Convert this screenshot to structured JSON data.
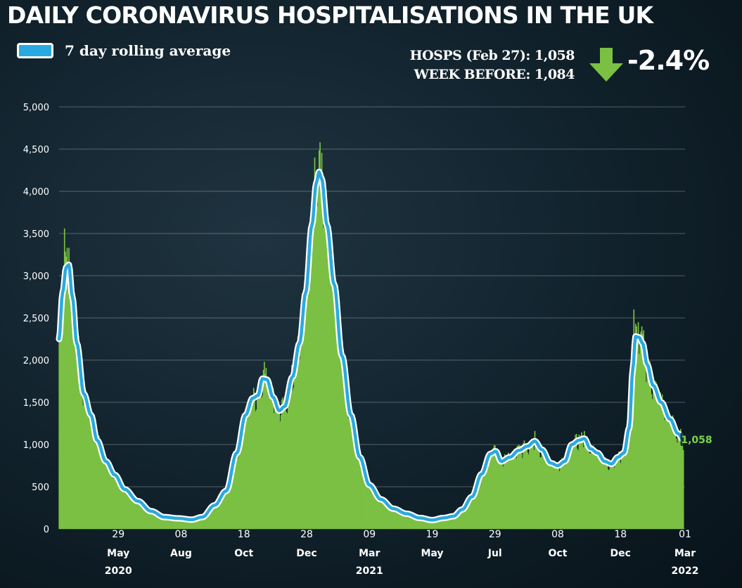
{
  "title": "DAILY CORONAVIRUS HOSPITALISATIONS IN THE UK",
  "legend": {
    "label": "7 day rolling average",
    "swatch_color": "#2aa9e0"
  },
  "stats": {
    "current": "HOSPS (Feb 27): 1,058",
    "previous": "WEEK BEFORE: 1,084",
    "change": "-2.4%",
    "change_icon": "down-arrow-icon",
    "change_color": "#7bc043"
  },
  "chart_data": {
    "type": "bar",
    "overlay": "line",
    "title": "DAILY CORONAVIRUS HOSPITALISATIONS IN THE UK",
    "xlabel": "",
    "ylabel": "",
    "ylim": [
      0,
      5000
    ],
    "yticks": [
      0,
      500,
      1000,
      1500,
      2000,
      2500,
      3000,
      3500,
      4000,
      4500,
      5000
    ],
    "ytick_labels": [
      "0",
      "500",
      "1,000",
      "1,500",
      "2,000",
      "2,500",
      "3,000",
      "3,500",
      "4,000",
      "4,500",
      "5,000"
    ],
    "xlim": [
      "2020-03-23",
      "2022-03-01"
    ],
    "xticks": [
      {
        "date": "2020-05-29",
        "day": "29",
        "month": "May"
      },
      {
        "date": "2020-08-08",
        "day": "08",
        "month": "Aug"
      },
      {
        "date": "2020-10-18",
        "day": "18",
        "month": "Oct"
      },
      {
        "date": "2020-12-28",
        "day": "28",
        "month": "Dec"
      },
      {
        "date": "2021-03-09",
        "day": "09",
        "month": "Mar"
      },
      {
        "date": "2021-05-19",
        "day": "19",
        "month": "May"
      },
      {
        "date": "2021-07-29",
        "day": "29",
        "month": "Jul"
      },
      {
        "date": "2021-10-08",
        "day": "08",
        "month": "Oct"
      },
      {
        "date": "2021-12-18",
        "day": "18",
        "month": "Dec"
      },
      {
        "date": "2022-03-01",
        "day": "01",
        "month": "Mar"
      }
    ],
    "years": [
      {
        "label": "2020",
        "date": "2020-05-29"
      },
      {
        "label": "2021",
        "date": "2021-03-09"
      },
      {
        "label": "2022",
        "date": "2022-03-01"
      }
    ],
    "grid": true,
    "legend_position": "top-left",
    "series": [
      {
        "name": "7 day rolling average",
        "kind": "line",
        "color": "#2aa9e0",
        "points": [
          [
            "2020-03-23",
            2250
          ],
          [
            "2020-03-27",
            2800
          ],
          [
            "2020-03-31",
            3100
          ],
          [
            "2020-04-03",
            3130
          ],
          [
            "2020-04-07",
            2750
          ],
          [
            "2020-04-12",
            2200
          ],
          [
            "2020-04-20",
            1600
          ],
          [
            "2020-04-28",
            1350
          ],
          [
            "2020-05-05",
            1050
          ],
          [
            "2020-05-15",
            800
          ],
          [
            "2020-05-25",
            640
          ],
          [
            "2020-06-05",
            470
          ],
          [
            "2020-06-20",
            330
          ],
          [
            "2020-07-05",
            210
          ],
          [
            "2020-07-20",
            140
          ],
          [
            "2020-08-05",
            125
          ],
          [
            "2020-08-20",
            110
          ],
          [
            "2020-09-01",
            140
          ],
          [
            "2020-09-15",
            280
          ],
          [
            "2020-09-28",
            450
          ],
          [
            "2020-10-10",
            900
          ],
          [
            "2020-10-20",
            1350
          ],
          [
            "2020-10-28",
            1550
          ],
          [
            "2020-11-03",
            1580
          ],
          [
            "2020-11-08",
            1780
          ],
          [
            "2020-11-13",
            1770
          ],
          [
            "2020-11-20",
            1560
          ],
          [
            "2020-11-27",
            1400
          ],
          [
            "2020-12-03",
            1450
          ],
          [
            "2020-12-12",
            1800
          ],
          [
            "2020-12-20",
            2200
          ],
          [
            "2020-12-27",
            2800
          ],
          [
            "2021-01-03",
            3600
          ],
          [
            "2021-01-08",
            4100
          ],
          [
            "2021-01-11",
            4230
          ],
          [
            "2021-01-14",
            4150
          ],
          [
            "2021-01-20",
            3600
          ],
          [
            "2021-01-28",
            2900
          ],
          [
            "2021-02-06",
            2050
          ],
          [
            "2021-02-16",
            1350
          ],
          [
            "2021-02-26",
            850
          ],
          [
            "2021-03-09",
            520
          ],
          [
            "2021-03-22",
            350
          ],
          [
            "2021-04-05",
            240
          ],
          [
            "2021-04-20",
            180
          ],
          [
            "2021-05-05",
            130
          ],
          [
            "2021-05-19",
            105
          ],
          [
            "2021-06-01",
            130
          ],
          [
            "2021-06-12",
            150
          ],
          [
            "2021-06-22",
            230
          ],
          [
            "2021-07-03",
            380
          ],
          [
            "2021-07-14",
            650
          ],
          [
            "2021-07-24",
            890
          ],
          [
            "2021-07-30",
            920
          ],
          [
            "2021-08-05",
            800
          ],
          [
            "2021-08-15",
            850
          ],
          [
            "2021-08-25",
            930
          ],
          [
            "2021-09-04",
            980
          ],
          [
            "2021-09-12",
            1040
          ],
          [
            "2021-09-20",
            940
          ],
          [
            "2021-09-30",
            780
          ],
          [
            "2021-10-08",
            750
          ],
          [
            "2021-10-16",
            800
          ],
          [
            "2021-10-24",
            1000
          ],
          [
            "2021-11-01",
            1050
          ],
          [
            "2021-11-07",
            1070
          ],
          [
            "2021-11-14",
            950
          ],
          [
            "2021-11-22",
            900
          ],
          [
            "2021-11-30",
            800
          ],
          [
            "2021-12-08",
            770
          ],
          [
            "2021-12-15",
            850
          ],
          [
            "2021-12-22",
            900
          ],
          [
            "2021-12-28",
            1200
          ],
          [
            "2022-01-01",
            1900
          ],
          [
            "2022-01-04",
            2280
          ],
          [
            "2022-01-08",
            2270
          ],
          [
            "2022-01-12",
            2200
          ],
          [
            "2022-01-17",
            1950
          ],
          [
            "2022-01-24",
            1700
          ],
          [
            "2022-02-02",
            1500
          ],
          [
            "2022-02-12",
            1300
          ],
          [
            "2022-02-21",
            1130
          ],
          [
            "2022-02-27",
            1058
          ]
        ]
      },
      {
        "name": "",
        "kind": "bar",
        "color": "#7bc043",
        "note": "daily admissions shown as thin bars around the rolling average",
        "spikes": [
          [
            "2020-03-29",
            3560
          ],
          [
            "2020-04-01",
            3330
          ],
          [
            "2020-11-10",
            1980
          ],
          [
            "2021-01-06",
            4400
          ],
          [
            "2021-01-12",
            4580
          ],
          [
            "2021-09-12",
            1160
          ],
          [
            "2021-11-07",
            1160
          ],
          [
            "2022-01-02",
            2600
          ],
          [
            "2022-01-07",
            2450
          ]
        ]
      }
    ],
    "annotations": [
      {
        "date": "2022-02-27",
        "value": 1058,
        "label": "1,058"
      }
    ]
  }
}
